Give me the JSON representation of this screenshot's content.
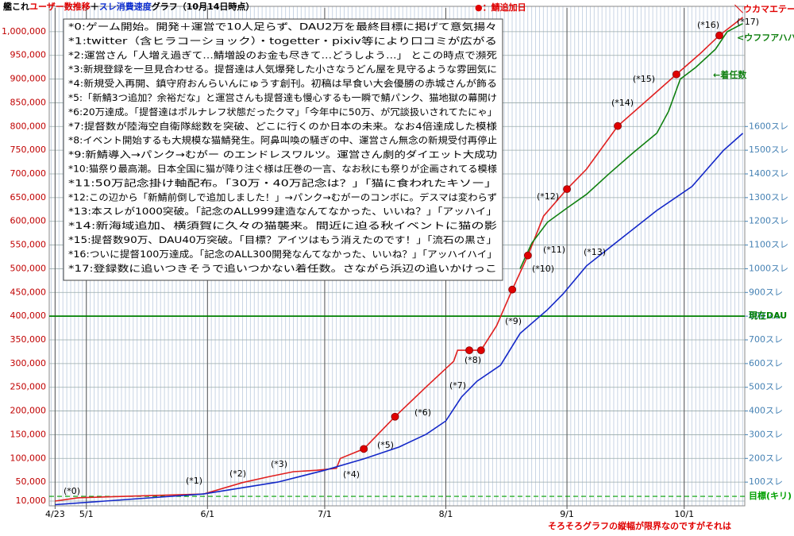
{
  "chart_data": {
    "type": "line",
    "title": [
      "艦これ",
      "ユーザー数推移",
      "＋",
      "スレ消費速度",
      "グラフ（10月14日時点）"
    ],
    "xlim": [
      -1.5,
      176.5
    ],
    "xticks": [
      {
        "value": 0,
        "label": "4/23"
      },
      {
        "value": 8,
        "label": "5/1"
      },
      {
        "value": 39,
        "label": "6/1"
      },
      {
        "value": 69,
        "label": "7/1"
      },
      {
        "value": 100,
        "label": "8/1"
      },
      {
        "value": 131,
        "label": "9/1"
      },
      {
        "value": 161,
        "label": "10/1"
      }
    ],
    "ylim": [
      0,
      1050000
    ],
    "yticks": [
      {
        "value": 10000,
        "label": "10,000"
      },
      {
        "value": 50000,
        "label": "50,000"
      },
      {
        "value": 100000,
        "label": "100,000"
      },
      {
        "value": 150000,
        "label": "150,000"
      },
      {
        "value": 200000,
        "label": "200,000"
      },
      {
        "value": 250000,
        "label": "250,000"
      },
      {
        "value": 300000,
        "label": "300,000"
      },
      {
        "value": 350000,
        "label": "350,000"
      },
      {
        "value": 400000,
        "label": "400,000"
      },
      {
        "value": 450000,
        "label": "450,000"
      },
      {
        "value": 500000,
        "label": "500,000"
      },
      {
        "value": 550000,
        "label": "550,000"
      },
      {
        "value": 600000,
        "label": "600,000"
      },
      {
        "value": 650000,
        "label": "650,000"
      },
      {
        "value": 700000,
        "label": "700,000"
      },
      {
        "value": 750000,
        "label": "750,000"
      },
      {
        "value": 800000,
        "label": "800,000"
      },
      {
        "value": 850000,
        "label": "850,000"
      },
      {
        "value": 900000,
        "label": "900,000"
      },
      {
        "value": 950000,
        "label": "950,000"
      },
      {
        "value": 1000000,
        "label": "1,000,000"
      }
    ],
    "y2lim": [
      0,
      2100
    ],
    "y2ticks": [
      {
        "value": 100,
        "label": "100スレ"
      },
      {
        "value": 200,
        "label": "200スレ"
      },
      {
        "value": 300,
        "label": "300スレ"
      },
      {
        "value": 400,
        "label": "400スレ"
      },
      {
        "value": 500,
        "label": "500スレ"
      },
      {
        "value": 600,
        "label": "600スレ"
      },
      {
        "value": 700,
        "label": "700スレ"
      },
      {
        "value": 800,
        "label": "800スレ"
      },
      {
        "value": 900,
        "label": "900スレ"
      },
      {
        "value": 1000,
        "label": "1000スレ"
      },
      {
        "value": 1100,
        "label": "1100スレ"
      },
      {
        "value": 1200,
        "label": "1200スレ"
      },
      {
        "value": 1300,
        "label": "1300スレ"
      },
      {
        "value": 1400,
        "label": "1400スレ"
      },
      {
        "value": 1500,
        "label": "1500スレ"
      },
      {
        "value": 1600,
        "label": "1600スレ"
      }
    ],
    "grid": true,
    "series": [
      {
        "color": "#e02020",
        "style": "line",
        "x": [
          0,
          6,
          38,
          48,
          55,
          61,
          67,
          72,
          73,
          79,
          87,
          95,
          102,
          103,
          106,
          109,
          113,
          117,
          121,
          125,
          131,
          136,
          144,
          152,
          159,
          165,
          170,
          176
        ],
        "values": [
          10000,
          17000,
          25000,
          49000,
          62000,
          72000,
          75000,
          79000,
          100000,
          120000,
          188000,
          251000,
          305000,
          328000,
          328000,
          328000,
          380000,
          456000,
          528000,
          611000,
          668000,
          710000,
          801000,
          859000,
          910000,
          953000,
          992000,
          1030000
        ]
      },
      {
        "name": "←着任数",
        "color": "#108010",
        "style": "line",
        "x": [
          119,
          122,
          126,
          131,
          136,
          142,
          148,
          154,
          157,
          160,
          164,
          169,
          172,
          176
        ],
        "values": [
          500000,
          554000,
          598000,
          628000,
          657000,
          702000,
          745000,
          786000,
          832000,
          900000,
          925000,
          963000,
          1000000,
          1017000
        ]
      },
      {
        "color": "#1428c8",
        "style": "line",
        "axis": "y2",
        "x": [
          0,
          38,
          57,
          69,
          79,
          88,
          95,
          100,
          104,
          108,
          114,
          119,
          126,
          130,
          136,
          145,
          154,
          163,
          171,
          176
        ],
        "values": [
          5,
          50,
          100,
          150,
          198,
          248,
          302,
          358,
          459,
          526,
          593,
          727,
          827,
          894,
          1012,
          1129,
          1246,
          1347,
          1498,
          1571
        ]
      },
      {
        "name": "●：鯖追加日",
        "color": "#e00000",
        "style": "markers",
        "x": [
          79,
          87,
          106,
          109,
          117,
          121,
          131,
          144,
          159,
          170
        ],
        "values": [
          120000,
          188000,
          328000,
          328000,
          456000,
          528000,
          668000,
          801000,
          910000,
          992000
        ]
      }
    ],
    "ref_lines": [
      {
        "value": 400000,
        "label": "現在DAU",
        "color": "#008000",
        "dash": false
      },
      {
        "value": 20000,
        "label": "目標(キリ)",
        "color": "#00a000",
        "dash": true
      }
    ],
    "annotations": [
      "(*0)",
      "(*1)",
      "(*2)",
      "(*3)",
      "(*4)",
      "(*5)",
      "(*6)",
      "(*7)",
      "(*8)",
      "(*9)",
      "(*10)",
      "(*11)",
      "(*12)",
      "(*13)",
      "(*14)",
      "(*15)",
      "(*16)",
      "(*17)"
    ],
    "notes": [
      "*0:ゲーム開始。開発＋運営で10人足らず、DAU2万を最終目標に掲げて意気揚々",
      "*1:twitter（含ヒラコーショック）・togetter・pixiv等により口コミが広がる",
      "*2:運営さん「人増え過ぎて…鯖増設のお金も尽きて…どうしよう…」 とこの時点で瀕死",
      "*3:新規登録を一旦見合わせる。提督達は人気爆発した小さなうどん屋を見守るような雰囲気に",
      "*4:新規受入再開、鎮守府おんらいんにゅうす創刊。初稿は早食い大会優勝の赤城さんが飾る",
      "*5:「新鯖3つ追加？余裕だな」と運営さんも提督達も慢心するも一瞬で鯖パンク、猫地獄の幕開け",
      "*6:20万達成。「提督達はポルナレフ状態だったクマ」「今年中に50万、が冗談扱いされてたにゃ」",
      "*7:提督数が陸海空自衛隊総数を突破、どこに行くのか日本の未来。なお4倍達成した模様",
      "*8:イベント開始するも大規模な猫鯖発生。阿鼻叫喚の騒ぎの中、運営さん無念の新規受付再停止",
      "*9:新鯖導入→パンク→むがー のエンドレスワルツ。運営さん劇的ダイエット大成功",
      "*10:猫祭り最高潮。日本全国に猫が降り注ぐ様は圧巻の一言、なお秋にも祭りが企画されてる模様",
      "*11:50万記念掛け軸配布。「30万・40万記念は？」「猫に食われたキソー」",
      "*12:この辺から「新鯖前倒しで追加しました！」→パンク→むがーのコンボに。デスマは変わらず",
      "*13:本スレが1000突破。「記念のALL999建造なんてなかった、いいね？」「アッハイ」",
      "*14:新海域追加、横須賀に久々の猫襲来。間近に迫る秋イベントに猫の影",
      "*15:提督数90万、DAU40万突破。「目標？アイツはもう消えたのです！」「流石の黒さ」",
      "*16:ついに提督100万達成。「記念のALL300開発なんてなかった、いいね？」「アッハイハイ」",
      "*17:登録数に追いつきそうで追いつかない着任数。さながら浜辺の追いかけっこ"
    ],
    "comments": [
      "＼ウカマエテー／",
      "<ウフフアハハ",
      "そろそろグラフの縦幅が限界なのですがそれは"
    ]
  }
}
